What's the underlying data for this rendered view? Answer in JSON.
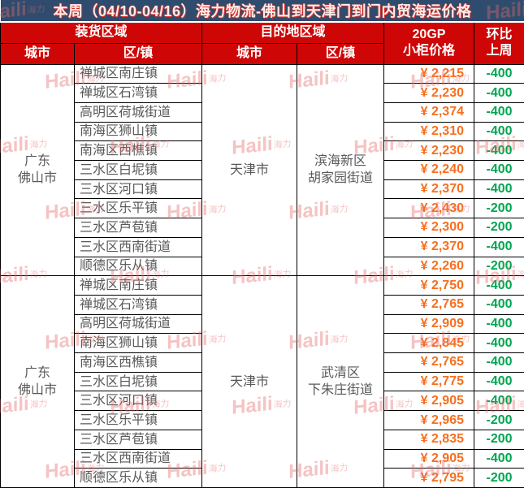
{
  "title": "本周（04/10-04/16）海力物流-佛山到天津门到门内贸海运价格",
  "header": {
    "loading_area": "装货区域",
    "destination_area": "目的地区域",
    "price_line1": "20GP",
    "price_line2": "小柜价格",
    "change_line1": "环比",
    "change_line2": "上周",
    "city": "城市",
    "district": "区/镇"
  },
  "watermark": {
    "brand": "Haili",
    "suffix": "海力"
  },
  "colors": {
    "title_bg": "#2f4c6e",
    "title_text": "#fdecea",
    "title_text_shadow": "#d93025",
    "header_bg": "#cf0606",
    "header_text": "#ffffff",
    "body_text": "#595959",
    "price_text": "#f76f1e",
    "change_text": "#00a650",
    "border": "#000000",
    "watermark_pink": "#e76a6a"
  },
  "sections": [
    {
      "origin_city_lines": [
        "广东",
        "佛山市"
      ],
      "dest_city": "天津市",
      "dest_district_lines": [
        "滨海新区",
        "胡家园街道"
      ],
      "rows": [
        {
          "district": "禅城区南庄镇",
          "price": "¥ 2,215",
          "change": "-400"
        },
        {
          "district": "禅城区石湾镇",
          "price": "¥ 2,230",
          "change": "-400"
        },
        {
          "district": "高明区荷城街道",
          "price": "¥ 2,374",
          "change": "-400"
        },
        {
          "district": "南海区狮山镇",
          "price": "¥ 2,310",
          "change": "-400"
        },
        {
          "district": "南海区西樵镇",
          "price": "¥ 2,230",
          "change": "-400"
        },
        {
          "district": "三水区白坭镇",
          "price": "¥ 2,240",
          "change": "-400"
        },
        {
          "district": "三水区河口镇",
          "price": "¥ 2,370",
          "change": "-400"
        },
        {
          "district": "三水区乐平镇",
          "price": "¥ 2,430",
          "change": "-200"
        },
        {
          "district": "三水区芦苞镇",
          "price": "¥ 2,300",
          "change": "-200"
        },
        {
          "district": "三水区西南街道",
          "price": "¥ 2,370",
          "change": "-400"
        },
        {
          "district": "顺德区乐从镇",
          "price": "¥ 2,260",
          "change": "-200"
        }
      ]
    },
    {
      "origin_city_lines": [
        "广东",
        "佛山市"
      ],
      "dest_city": "天津市",
      "dest_district_lines": [
        "武清区",
        "下朱庄街道"
      ],
      "rows": [
        {
          "district": "禅城区南庄镇",
          "price": "¥ 2,750",
          "change": "-400"
        },
        {
          "district": "禅城区石湾镇",
          "price": "¥ 2,765",
          "change": "-400"
        },
        {
          "district": "高明区荷城街道",
          "price": "¥ 2,909",
          "change": "-400"
        },
        {
          "district": "南海区狮山镇",
          "price": "¥ 2,845",
          "change": "-400"
        },
        {
          "district": "南海区西樵镇",
          "price": "¥ 2,765",
          "change": "-400"
        },
        {
          "district": "三水区白坭镇",
          "price": "¥ 2,775",
          "change": "-400"
        },
        {
          "district": "三水区河口镇",
          "price": "¥ 2,905",
          "change": "-400"
        },
        {
          "district": "三水区乐平镇",
          "price": "¥ 2,965",
          "change": "-200"
        },
        {
          "district": "三水区芦苞镇",
          "price": "¥ 2,835",
          "change": "-200"
        },
        {
          "district": "三水区西南街道",
          "price": "¥ 2,905",
          "change": "-400"
        },
        {
          "district": "顺德区乐从镇",
          "price": "¥ 2,795",
          "change": "-200"
        }
      ]
    }
  ]
}
